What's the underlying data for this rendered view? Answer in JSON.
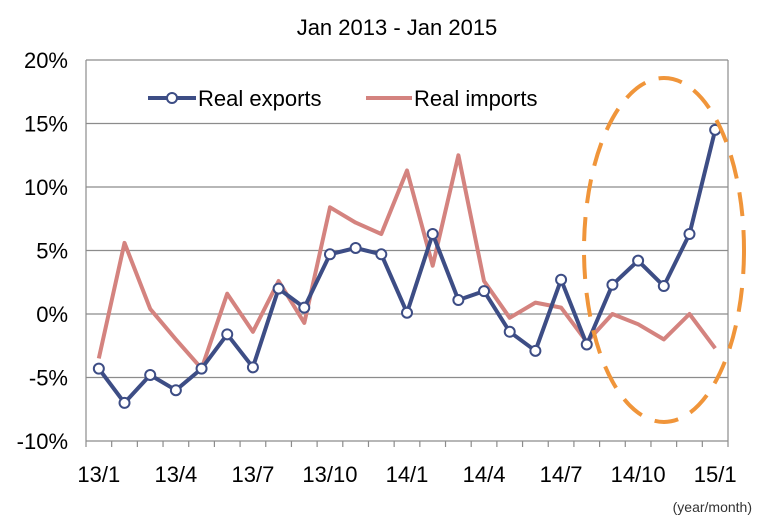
{
  "chart_data": {
    "type": "line",
    "title": "Jan 2013 - Jan 2015",
    "x_unit_label": "(year/month)",
    "x": [
      "2013/1",
      "2013/2",
      "2013/3",
      "2013/4",
      "2013/5",
      "2013/6",
      "2013/7",
      "2013/8",
      "2013/9",
      "2013/10",
      "2013/11",
      "2013/12",
      "2014/1",
      "2014/2",
      "2014/3",
      "2014/4",
      "2014/5",
      "2014/6",
      "2014/7",
      "2014/8",
      "2014/9",
      "2014/10",
      "2014/11",
      "2014/12",
      "2015/1"
    ],
    "x_tick_labels": [
      {
        "index": 0,
        "label": "13/1"
      },
      {
        "index": 3,
        "label": "13/4"
      },
      {
        "index": 6,
        "label": "13/7"
      },
      {
        "index": 9,
        "label": "13/10"
      },
      {
        "index": 12,
        "label": "14/1"
      },
      {
        "index": 15,
        "label": "14/4"
      },
      {
        "index": 18,
        "label": "14/7"
      },
      {
        "index": 21,
        "label": "14/10"
      },
      {
        "index": 24,
        "label": "15/1"
      }
    ],
    "ylim": [
      -10,
      20
    ],
    "y_ticks": [
      20,
      15,
      10,
      5,
      0,
      -5,
      -10
    ],
    "y_tick_labels": [
      "20%",
      "15%",
      "10%",
      "5%",
      "0%",
      "-5%",
      "-10%"
    ],
    "grid": "horizontal",
    "legend_placement": "top-left",
    "series": [
      {
        "name": "Real exports",
        "color": "#3d4d85",
        "markers": "open-circle",
        "values": [
          -4.3,
          -7.0,
          -4.8,
          -6.0,
          -4.3,
          -1.6,
          -4.2,
          2.0,
          0.5,
          4.7,
          5.2,
          4.7,
          0.1,
          6.3,
          1.1,
          1.8,
          -1.4,
          -2.9,
          2.7,
          -2.4,
          2.3,
          4.2,
          2.2,
          6.3,
          14.5
        ]
      },
      {
        "name": "Real imports",
        "color": "#d4837f",
        "markers": "none",
        "values": [
          -3.5,
          5.6,
          0.4,
          -2.0,
          -4.3,
          1.6,
          -1.4,
          2.6,
          -0.7,
          8.4,
          7.2,
          6.3,
          11.3,
          3.8,
          12.5,
          2.6,
          -0.3,
          0.9,
          0.5,
          -2.2,
          0.0,
          -0.8,
          -2.0,
          0.0,
          -2.7
        ]
      }
    ],
    "highlight_color": "#f0953a"
  }
}
